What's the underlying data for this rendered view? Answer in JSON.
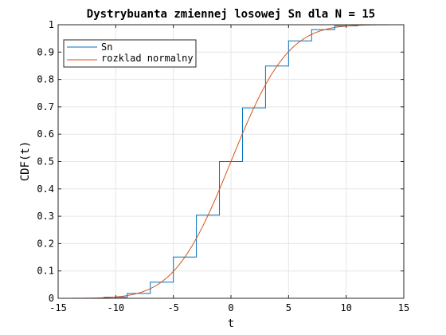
{
  "chart_data": {
    "type": "line",
    "title": "Dystrybuanta zmiennej losowej Sn dla N = 15",
    "xlabel": "t",
    "ylabel": "CDF(t)",
    "xlim": [
      -15,
      15
    ],
    "ylim": [
      0,
      1
    ],
    "xticks": [
      -15,
      -10,
      -5,
      0,
      5,
      10,
      15
    ],
    "yticks": [
      0,
      0.1,
      0.2,
      0.3,
      0.4,
      0.5,
      0.6,
      0.7,
      0.8,
      0.9,
      1
    ],
    "grid": true,
    "legend_position": "top-left",
    "series": [
      {
        "name": "Sn",
        "style": "step",
        "color": "#0072BD",
        "x": [
          -15,
          -11,
          -9,
          -7,
          -5,
          -3,
          -1,
          1,
          3,
          5,
          7,
          9,
          11,
          15
        ],
        "y": [
          0,
          0.004,
          0.018,
          0.059,
          0.151,
          0.304,
          0.5,
          0.696,
          0.849,
          0.941,
          0.982,
          0.996,
          1.0,
          1.0
        ]
      },
      {
        "name": "rozklad normalny",
        "style": "line",
        "color": "#D95319",
        "mean": 0,
        "std": 3.873
      }
    ]
  }
}
